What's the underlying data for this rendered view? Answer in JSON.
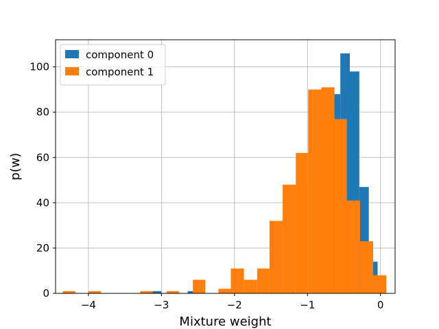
{
  "chart_data": {
    "type": "bar",
    "subtype": "histogram",
    "xlabel": "Mixture weight",
    "ylabel": "p(w)",
    "xlim": [
      -4.45,
      0.2
    ],
    "ylim": [
      0,
      112
    ],
    "xticks": [
      -4,
      -3,
      -2,
      -1,
      0
    ],
    "yticks": [
      0,
      20,
      40,
      60,
      80,
      100
    ],
    "xtick_labels": [
      "−4",
      "−3",
      "−2",
      "−1",
      "0"
    ],
    "ytick_labels": [
      "0",
      "20",
      "40",
      "60",
      "80",
      "100"
    ],
    "grid": true,
    "legend_position": "top-left",
    "series": [
      {
        "name": "component 0",
        "color": "#1f77b4",
        "bins": [
          {
            "x0": -3.12,
            "x1": -3.0,
            "count": 1
          },
          {
            "x0": -2.64,
            "x1": -2.57,
            "count": 1
          },
          {
            "x0": -0.68,
            "x1": -0.55,
            "count": 88
          },
          {
            "x0": -0.55,
            "x1": -0.42,
            "count": 106
          },
          {
            "x0": -0.42,
            "x1": -0.29,
            "count": 98
          },
          {
            "x0": -0.29,
            "x1": -0.16,
            "count": 47
          },
          {
            "x0": -0.16,
            "x1": -0.04,
            "count": 14
          }
        ]
      },
      {
        "name": "component 1",
        "color": "#ff7f0e",
        "bins": [
          {
            "x0": -4.35,
            "x1": -4.18,
            "count": 1
          },
          {
            "x0": -4.0,
            "x1": -3.83,
            "count": 1
          },
          {
            "x0": -3.29,
            "x1": -3.12,
            "count": 1
          },
          {
            "x0": -2.93,
            "x1": -2.76,
            "count": 1
          },
          {
            "x0": -2.57,
            "x1": -2.4,
            "count": 6
          },
          {
            "x0": -2.22,
            "x1": -2.05,
            "count": 2
          },
          {
            "x0": -2.05,
            "x1": -1.87,
            "count": 11
          },
          {
            "x0": -1.87,
            "x1": -1.69,
            "count": 6
          },
          {
            "x0": -1.69,
            "x1": -1.52,
            "count": 11
          },
          {
            "x0": -1.52,
            "x1": -1.34,
            "count": 32
          },
          {
            "x0": -1.34,
            "x1": -1.16,
            "count": 48
          },
          {
            "x0": -1.16,
            "x1": -0.99,
            "count": 62
          },
          {
            "x0": -0.99,
            "x1": -0.81,
            "count": 90
          },
          {
            "x0": -0.81,
            "x1": -0.63,
            "count": 91
          },
          {
            "x0": -0.63,
            "x1": -0.46,
            "count": 77
          },
          {
            "x0": -0.46,
            "x1": -0.28,
            "count": 41
          },
          {
            "x0": -0.28,
            "x1": -0.1,
            "count": 23
          },
          {
            "x0": -0.1,
            "x1": 0.08,
            "count": 8
          }
        ]
      }
    ]
  }
}
